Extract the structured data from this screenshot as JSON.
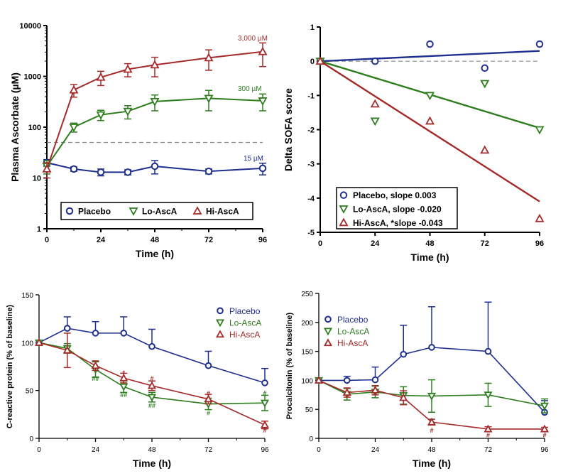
{
  "chart_data": [
    {
      "type": "line",
      "yscale": "log",
      "xlabel": "Time (h)",
      "ylabel": "Plasma Ascorbate (µM)",
      "xlim": [
        0,
        96
      ],
      "ylim": [
        1,
        10000
      ],
      "xticks": [
        0,
        24,
        48,
        72,
        96
      ],
      "yticks": [
        1,
        10,
        100,
        1000,
        10000
      ],
      "legend": "bottom",
      "reference_line": 50,
      "series": [
        {
          "name": "Placebo",
          "marker": "circle",
          "color": "#1f2f8f",
          "x": [
            0,
            12,
            24,
            36,
            48,
            72,
            96
          ],
          "y": [
            20,
            15,
            13,
            13,
            17,
            13.5,
            15.5
          ],
          "err": [
            3,
            1.5,
            2,
            1.5,
            5,
            1.5,
            4
          ]
        },
        {
          "name": "Lo-AscA",
          "marker": "triangle-down",
          "color": "#2e7d1f",
          "x": [
            0,
            12,
            24,
            36,
            48,
            72,
            96
          ],
          "y": [
            17,
            100,
            175,
            205,
            320,
            370,
            330
          ],
          "err": [
            5,
            20,
            40,
            60,
            110,
            160,
            120
          ]
        },
        {
          "name": "Hi-AscA",
          "marker": "triangle-up",
          "color": "#a52a2a",
          "x": [
            0,
            12,
            24,
            36,
            48,
            72,
            96
          ],
          "y": [
            15,
            540,
            960,
            1380,
            1680,
            2320,
            3060
          ],
          "err": [
            5,
            150,
            300,
            400,
            700,
            1000,
            1500
          ]
        }
      ],
      "annotations": [
        "3,000 µM",
        "300 µM",
        "15 µM"
      ]
    },
    {
      "type": "scatter",
      "xlabel": "Time (h)",
      "ylabel": "Delta SOFA score",
      "xlim": [
        0,
        96
      ],
      "ylim": [
        -5,
        1
      ],
      "xticks": [
        0,
        24,
        48,
        72,
        96
      ],
      "yticks": [
        1,
        0,
        -1,
        -2,
        -3,
        -4,
        -5
      ],
      "legend": "bottom-left",
      "reference_line": 0,
      "series": [
        {
          "name": "Placebo, slope 0.003",
          "marker": "circle",
          "color": "#1f2f8f",
          "x": [
            0,
            24,
            48,
            72,
            96
          ],
          "y": [
            0,
            0,
            0.5,
            -0.2,
            0.5
          ],
          "fit_start": 0,
          "fit_end": 0.3
        },
        {
          "name": "Lo-AscA, slope -0.020",
          "marker": "triangle-down",
          "color": "#2e7d1f",
          "x": [
            0,
            24,
            48,
            72,
            96
          ],
          "y": [
            0,
            -1.75,
            -1,
            -0.65,
            -2
          ],
          "fit_start": 0,
          "fit_end": -1.95
        },
        {
          "name": "Hi-AscA, *slope -0.043",
          "marker": "triangle-up",
          "color": "#a52a2a",
          "x": [
            0,
            24,
            48,
            72,
            96
          ],
          "y": [
            0,
            -1.25,
            -1.75,
            -2.6,
            -4.6
          ],
          "fit_start": 0,
          "fit_end": -4.1
        }
      ]
    },
    {
      "type": "line",
      "xlabel": "Time (h)",
      "ylabel": "C-reactive protein (% of baseline)",
      "xlim": [
        0,
        96
      ],
      "ylim": [
        0,
        150
      ],
      "xticks": [
        0,
        24,
        48,
        72,
        96
      ],
      "yticks": [
        0,
        50,
        100,
        150
      ],
      "legend": "top-right",
      "series": [
        {
          "name": "Placebo",
          "marker": "circle",
          "color": "#1f2f8f",
          "x": [
            0,
            12,
            24,
            36,
            48,
            72,
            96
          ],
          "y": [
            100,
            115,
            110,
            110,
            96,
            76,
            58
          ],
          "err": [
            0,
            12,
            12,
            17,
            18,
            15,
            15
          ]
        },
        {
          "name": "Lo-AscA",
          "marker": "triangle-down",
          "color": "#2e7d1f",
          "x": [
            0,
            12,
            24,
            36,
            48,
            72,
            96
          ],
          "y": [
            100,
            94,
            72,
            54,
            43,
            36,
            37
          ],
          "err": [
            0,
            5,
            8,
            6,
            5,
            6,
            8
          ]
        },
        {
          "name": "Hi-AscA",
          "marker": "triangle-up",
          "color": "#a52a2a",
          "x": [
            0,
            12,
            24,
            36,
            48,
            72,
            96
          ],
          "y": [
            100,
            92,
            76,
            63,
            55,
            41,
            14
          ],
          "err": [
            0,
            18,
            5,
            5,
            5,
            5,
            4
          ]
        }
      ],
      "significance": [
        {
          "x": 24,
          "y": 60,
          "text": "##",
          "color": "#2e7d1f"
        },
        {
          "x": 36,
          "y": 66,
          "text": "*",
          "color": "#a52a2a"
        },
        {
          "x": 36,
          "y": 43,
          "text": "##",
          "color": "#2e7d1f"
        },
        {
          "x": 48,
          "y": 60,
          "text": "#",
          "color": "#a52a2a"
        },
        {
          "x": 48,
          "y": 32,
          "text": "##",
          "color": "#2e7d1f"
        },
        {
          "x": 72,
          "y": 45,
          "text": "#",
          "color": "#a52a2a"
        },
        {
          "x": 72,
          "y": 24,
          "text": "#",
          "color": "#2e7d1f"
        },
        {
          "x": 96,
          "y": 45,
          "text": "#",
          "color": "#2e7d1f"
        },
        {
          "x": 96,
          "y": 6,
          "text": "#",
          "color": "#a52a2a"
        }
      ]
    },
    {
      "type": "line",
      "xlabel": "Time (h)",
      "ylabel": "Procalcitonin (% of baseline)",
      "xlim": [
        0,
        96
      ],
      "ylim": [
        0,
        250
      ],
      "xticks": [
        0,
        24,
        48,
        72,
        96
      ],
      "yticks": [
        0,
        50,
        100,
        150,
        200,
        250
      ],
      "legend": "top-left",
      "series": [
        {
          "name": "Placebo",
          "marker": "circle",
          "color": "#1f2f8f",
          "x": [
            0,
            12,
            24,
            36,
            48,
            72,
            96
          ],
          "y": [
            100,
            100,
            101,
            145,
            157,
            150,
            45
          ],
          "err": [
            0,
            7,
            22,
            50,
            70,
            85,
            20
          ]
        },
        {
          "name": "Lo-AscA",
          "marker": "triangle-down",
          "color": "#2e7d1f",
          "x": [
            0,
            12,
            24,
            36,
            48,
            72,
            96
          ],
          "y": [
            100,
            76,
            80,
            74,
            73,
            75,
            56
          ],
          "err": [
            0,
            10,
            10,
            15,
            28,
            20,
            12
          ]
        },
        {
          "name": "Hi-AscA",
          "marker": "triangle-up",
          "color": "#a52a2a",
          "x": [
            0,
            12,
            24,
            36,
            48,
            72,
            96
          ],
          "y": [
            100,
            79,
            83,
            70,
            28,
            16,
            16
          ],
          "err": [
            0,
            8,
            8,
            12,
            5,
            4,
            3
          ]
        }
      ],
      "significance": [
        {
          "x": 48,
          "y": 10,
          "text": "#",
          "color": "#a52a2a"
        },
        {
          "x": 72,
          "y": 2,
          "text": "#",
          "color": "#a52a2a"
        },
        {
          "x": 96,
          "y": 2,
          "text": "#",
          "color": "#a52a2a"
        }
      ]
    }
  ]
}
